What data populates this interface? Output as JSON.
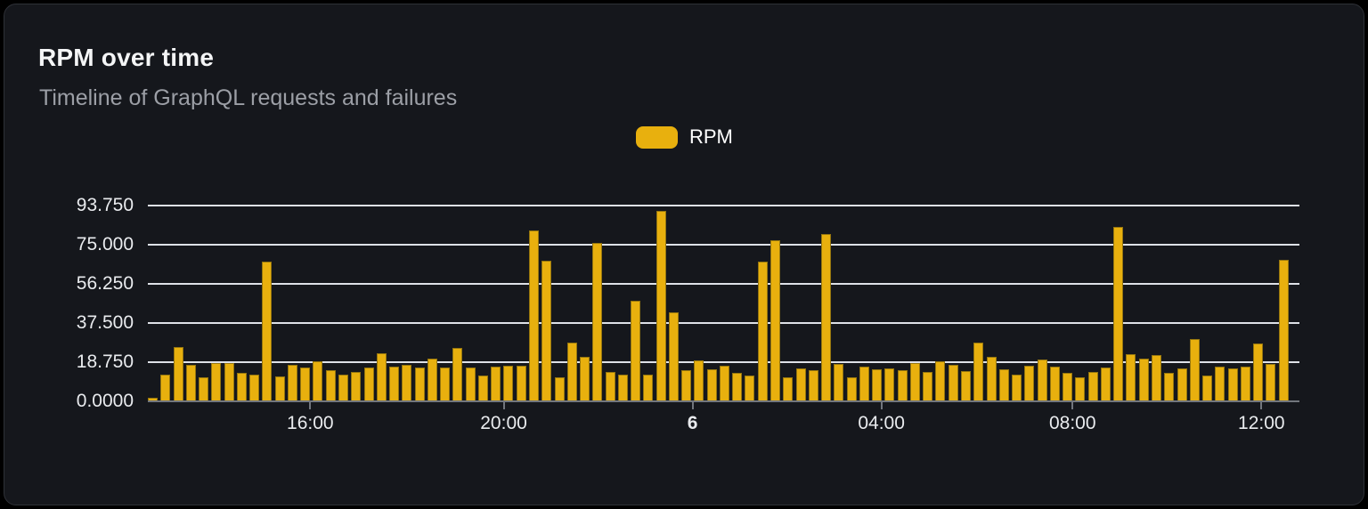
{
  "panel": {
    "title": "RPM over time",
    "subtitle": "Timeline of GraphQL requests and failures"
  },
  "legend": {
    "position": "top-center",
    "items": [
      {
        "label": "RPM",
        "color": "#e8b00e"
      }
    ]
  },
  "colors": {
    "background": "#15171c",
    "card_border": "#2e3137",
    "bar_fill": "#e8b00e",
    "bar_stroke": "#95760f",
    "gridline": "#dee1e7",
    "axis": "#72767d",
    "tick_text": "#e9ebee",
    "title_text": "#f4f5f6",
    "subtitle_text": "#9c9fa6"
  },
  "chart_data": {
    "type": "bar",
    "title": "RPM over time",
    "xlabel": "",
    "ylabel": "",
    "ylim": [
      0,
      93.75
    ],
    "grid": "horizontal",
    "legend_position": "top-center",
    "y_ticks": [
      {
        "label": "0.0000",
        "value": 0
      },
      {
        "label": "18.750",
        "value": 18.75
      },
      {
        "label": "37.500",
        "value": 37.5
      },
      {
        "label": "56.250",
        "value": 56.25
      },
      {
        "label": "75.000",
        "value": 75
      },
      {
        "label": "93.750",
        "value": 93.75
      }
    ],
    "x_ticks": [
      {
        "label": "16:00",
        "pos": 0.141,
        "bold": false
      },
      {
        "label": "20:00",
        "pos": 0.309,
        "bold": false
      },
      {
        "label": "6",
        "pos": 0.473,
        "bold": true
      },
      {
        "label": "04:00",
        "pos": 0.637,
        "bold": false
      },
      {
        "label": "08:00",
        "pos": 0.803,
        "bold": false
      },
      {
        "label": "12:00",
        "pos": 0.967,
        "bold": false
      }
    ],
    "series": [
      {
        "name": "RPM",
        "values": [
          1.5,
          13,
          26,
          17.5,
          11.5,
          18.3,
          18.3,
          13.7,
          13,
          67,
          12,
          17.3,
          16,
          19.3,
          15,
          12.8,
          14.2,
          16.3,
          23.2,
          16.8,
          17.4,
          16,
          20.4,
          16,
          25.6,
          16,
          12.5,
          16.8,
          17.1,
          17.1,
          82,
          67.5,
          11.7,
          28.3,
          21.5,
          76,
          13.9,
          13,
          48,
          13,
          91,
          42.7,
          14.8,
          19.8,
          15.3,
          17,
          13.5,
          12.5,
          67,
          77,
          11.6,
          15.8,
          14.8,
          80,
          17.7,
          11.6,
          16.7,
          15.3,
          15.8,
          14.8,
          18.4,
          14.1,
          19,
          17.3,
          14.4,
          28.3,
          21.2,
          15.3,
          13,
          17,
          20,
          16.7,
          13.7,
          11.7,
          13.9,
          16.3,
          83.5,
          22.6,
          20.5,
          22.2,
          13.7,
          15.6,
          30,
          12.4,
          16.5,
          15.8,
          16.5,
          27.6,
          18,
          67.6
        ]
      }
    ]
  }
}
